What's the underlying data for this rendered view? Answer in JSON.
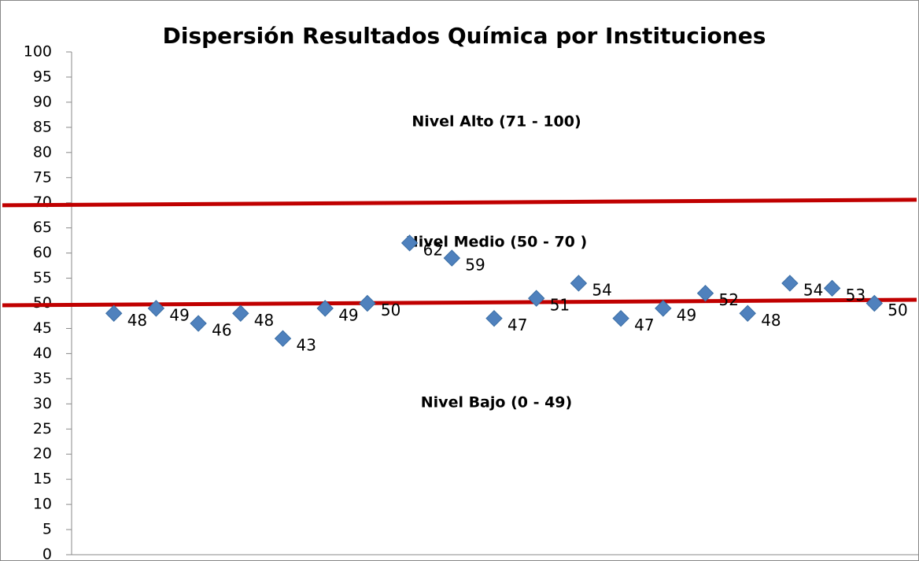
{
  "chart_data": {
    "type": "scatter",
    "title": "Dispersión Resultados Química por Instituciones",
    "annotations": [
      "Nivel Alto (71 - 100)",
      "Nivel Medio (50 - 70 )",
      "Nivel Bajo (0 - 49)"
    ],
    "series": [
      {
        "color": "#4f81bd",
        "x": [
          1,
          2,
          3,
          4,
          5,
          6,
          7,
          8,
          9,
          10,
          11,
          12,
          13,
          14,
          15,
          16,
          17,
          18,
          19
        ],
        "values": [
          48,
          49,
          46,
          48,
          43,
          49,
          50,
          62,
          59,
          47,
          51,
          54,
          47,
          49,
          52,
          48,
          54,
          53,
          50
        ]
      }
    ],
    "lines": [
      {
        "color": "#c00000",
        "y": [
          69.5,
          70.6
        ]
      },
      {
        "color": "#c00000",
        "y": [
          49.6,
          50.7
        ]
      }
    ],
    "xlim": [
      0,
      20
    ],
    "ylim": [
      0,
      100
    ],
    "yticks": [
      0,
      5,
      10,
      15,
      20,
      25,
      30,
      35,
      40,
      45,
      50,
      55,
      60,
      65,
      70,
      75,
      80,
      85,
      90,
      95,
      100
    ]
  }
}
